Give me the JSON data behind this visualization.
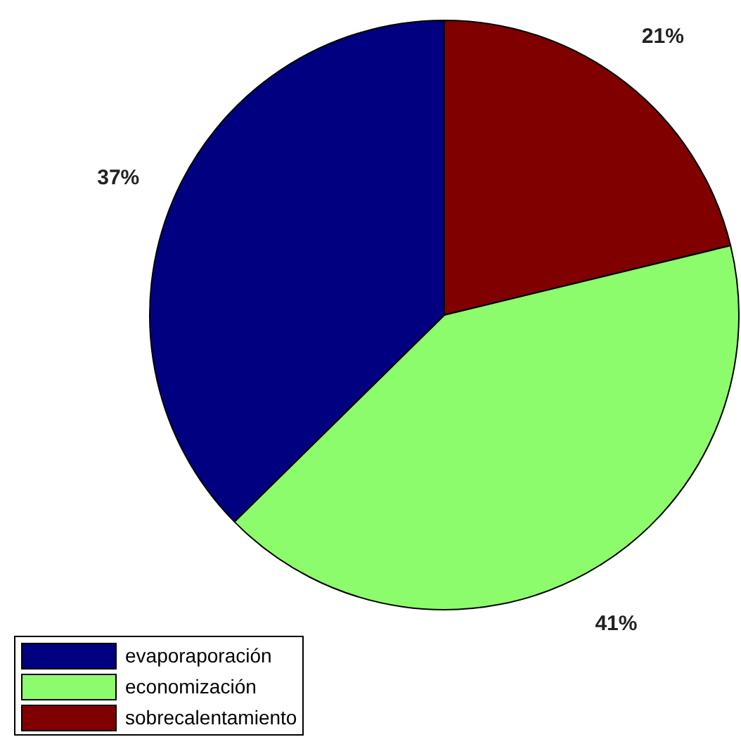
{
  "chart_data": {
    "type": "pie",
    "categories": [
      "evaporaporación",
      "economización",
      "sobrecalentamiento"
    ],
    "values": [
      37,
      41,
      21
    ],
    "colors": [
      "#000080",
      "#8cfc6c",
      "#800000"
    ],
    "value_labels": [
      "37%",
      "41%",
      "21%"
    ],
    "legend": "bottom left"
  }
}
